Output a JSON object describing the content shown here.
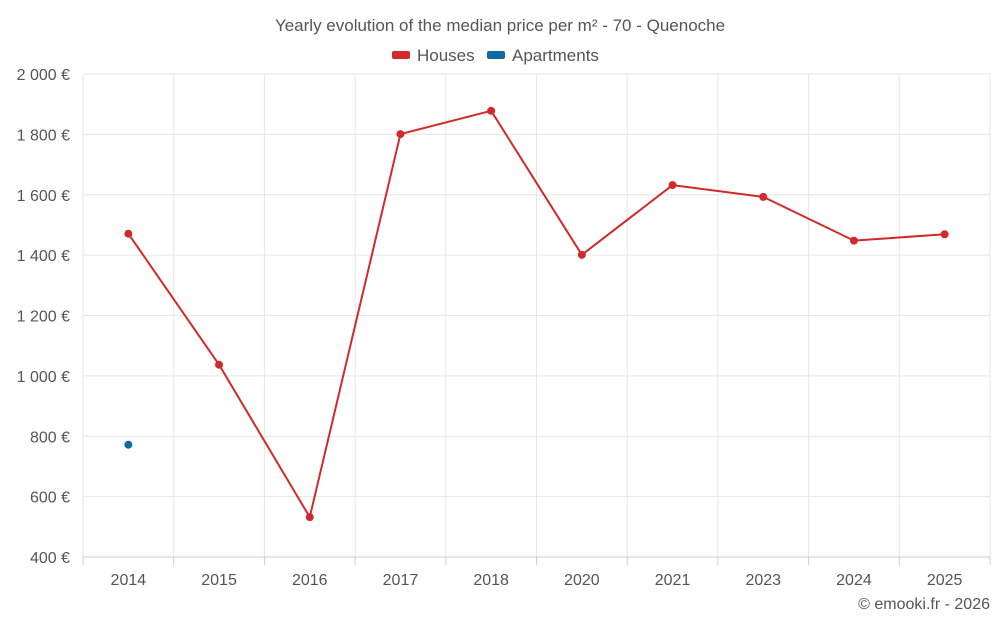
{
  "chart_data": {
    "type": "line",
    "title": "Yearly evolution of the median price per m² - 70 - Quenoche",
    "categories": [
      "2014",
      "2015",
      "2016",
      "2017",
      "2018",
      "2020",
      "2021",
      "2023",
      "2024",
      "2025"
    ],
    "y_ticks": [
      "2 000 €",
      "1 800 €",
      "1 600 €",
      "1 400 €",
      "1 200 €",
      "1 000 €",
      "800 €",
      "600 €",
      "400 €"
    ],
    "y_tick_values": [
      2000,
      1800,
      1600,
      1400,
      1200,
      1000,
      800,
      600,
      400
    ],
    "ylim": [
      400,
      2000
    ],
    "grid": true,
    "legend_position": "top-center",
    "series": [
      {
        "name": "Houses",
        "color": "#d12a2a",
        "values": [
          1471,
          1037,
          532,
          1801,
          1878,
          1401,
          1632,
          1593,
          1448,
          1469
        ]
      },
      {
        "name": "Apartments",
        "color": "#0e6aa0",
        "values": [
          772,
          null,
          null,
          null,
          null,
          null,
          null,
          null,
          null,
          null
        ]
      }
    ],
    "credit": "© emooki.fr - 2026"
  }
}
